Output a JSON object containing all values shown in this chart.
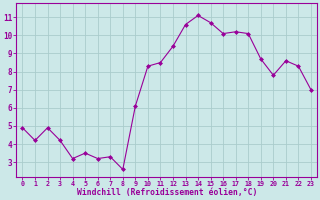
{
  "x": [
    0,
    1,
    2,
    3,
    4,
    5,
    6,
    7,
    8,
    9,
    10,
    11,
    12,
    13,
    14,
    15,
    16,
    17,
    18,
    19,
    20,
    21,
    22,
    23
  ],
  "y": [
    4.9,
    4.2,
    4.9,
    4.2,
    3.2,
    3.5,
    3.2,
    3.3,
    2.6,
    6.1,
    8.3,
    8.5,
    9.4,
    10.6,
    11.1,
    10.7,
    10.1,
    10.2,
    10.1,
    8.7,
    7.8,
    8.6,
    8.3,
    7.0
  ],
  "line_color": "#990099",
  "marker": "D",
  "marker_size": 2.0,
  "bg_color": "#cce8e8",
  "grid_color": "#aacccc",
  "xlabel": "Windchill (Refroidissement éolien,°C)",
  "xlabel_color": "#990099",
  "yticks": [
    3,
    4,
    5,
    6,
    7,
    8,
    9,
    10,
    11
  ],
  "xlim": [
    -0.5,
    23.5
  ],
  "ylim": [
    2.2,
    11.8
  ],
  "tick_color": "#990099",
  "spine_color": "#990099"
}
